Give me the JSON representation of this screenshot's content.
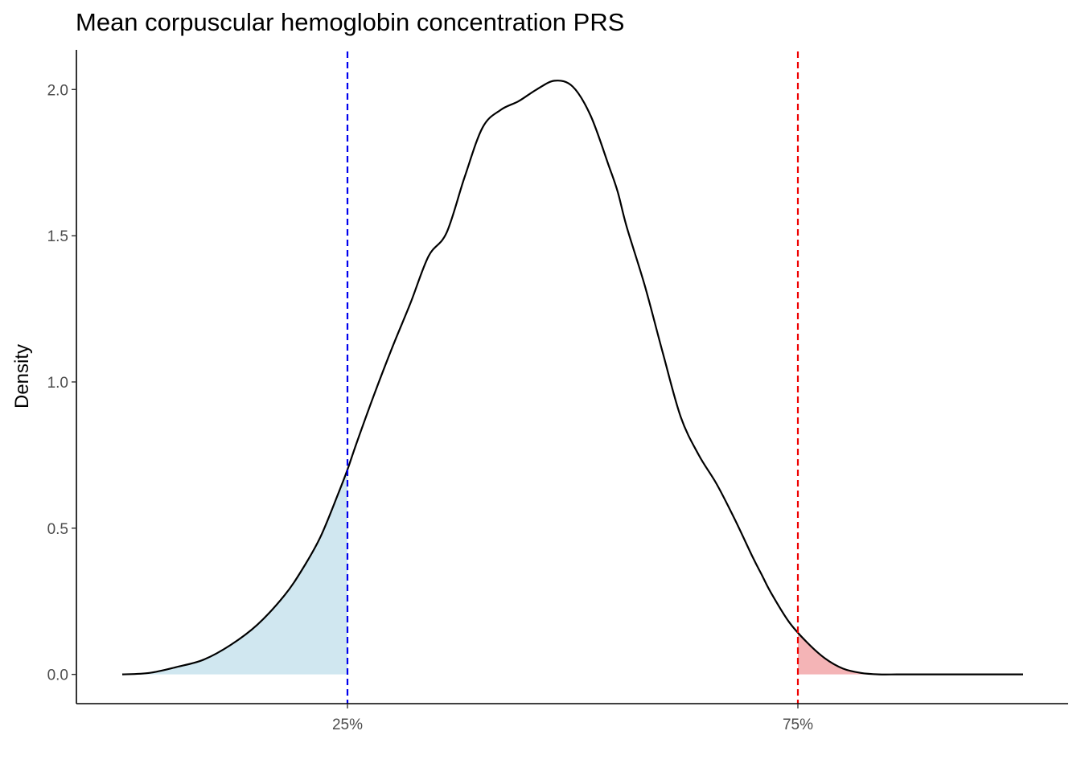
{
  "chart_data": {
    "type": "area",
    "title": "Mean corpuscular hemoglobin concentration PRS",
    "xlabel": "",
    "ylabel": "Density",
    "ylim": [
      -0.1,
      2.13
    ],
    "y_ticks": [
      0.0,
      0.5,
      1.0,
      1.5,
      2.0
    ],
    "y_tick_labels": [
      "0.0",
      "0.5",
      "1.0",
      "1.5",
      "2.0"
    ],
    "xlim": [
      0,
      100
    ],
    "x_ticks": [
      25,
      75
    ],
    "x_tick_labels": [
      "25%",
      "75%"
    ],
    "grid": false,
    "legend": "none",
    "density_curve": {
      "x": [
        0,
        3,
        6,
        9,
        12,
        15,
        18,
        20,
        22,
        24,
        25,
        26,
        28,
        30,
        32,
        34,
        36,
        38,
        40,
        42,
        44,
        46,
        48,
        50,
        52,
        54,
        55,
        56,
        58,
        60,
        62,
        64,
        66,
        68,
        70,
        71,
        72,
        74,
        76,
        78,
        80,
        82,
        84,
        86,
        88,
        90,
        92,
        94,
        96,
        98,
        100
      ],
      "y": [
        0.0,
        0.005,
        0.025,
        0.05,
        0.1,
        0.17,
        0.27,
        0.36,
        0.47,
        0.62,
        0.7,
        0.79,
        0.96,
        1.12,
        1.27,
        1.43,
        1.51,
        1.7,
        1.87,
        1.93,
        1.96,
        2.0,
        2.03,
        2.01,
        1.91,
        1.74,
        1.65,
        1.53,
        1.33,
        1.1,
        0.88,
        0.75,
        0.65,
        0.53,
        0.4,
        0.34,
        0.28,
        0.18,
        0.11,
        0.055,
        0.02,
        0.005,
        0.0,
        0.0,
        0.0,
        0.0,
        0.0,
        0.0,
        0.0,
        0.0,
        0.0
      ]
    },
    "quantile_lines": [
      {
        "label": "25%",
        "x": 25,
        "color": "#0000ee"
      },
      {
        "label": "75%",
        "x": 75,
        "color": "#ee0000"
      }
    ],
    "shaded_regions": [
      {
        "from": "min",
        "to": 25,
        "color": "#d0e7f0"
      },
      {
        "from": 75,
        "to": "max",
        "color": "#f4b4b6"
      }
    ],
    "line_color": "#000000"
  }
}
